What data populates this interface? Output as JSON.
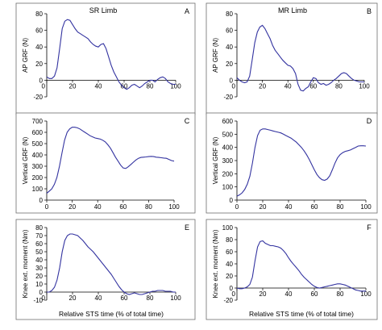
{
  "chart_data": [
    {
      "type": "line",
      "letter": "A",
      "title": "SR Limb",
      "ylabel": "AP GRF (N)",
      "xlabel": "",
      "xlim": [
        0,
        100
      ],
      "ylim": [
        -20,
        80
      ],
      "xticks": [
        0,
        20,
        40,
        60,
        80,
        100
      ],
      "yticks": [
        -20,
        0,
        20,
        40,
        60,
        80
      ],
      "ytick_labels": [
        "-20",
        "0",
        "20",
        "40",
        "60",
        "80"
      ],
      "xtick_labels": [
        "0",
        "20",
        "40",
        "60",
        "80",
        "100"
      ],
      "series": [
        {
          "x": [
            0,
            2,
            4,
            6,
            8,
            10,
            12,
            14,
            16,
            18,
            20,
            22,
            24,
            26,
            28,
            30,
            32,
            34,
            36,
            38,
            40,
            42,
            44,
            46,
            48,
            50,
            52,
            54,
            56,
            58,
            60,
            62,
            64,
            66,
            68,
            70,
            72,
            74,
            76,
            78,
            80,
            82,
            84,
            86,
            88,
            90,
            92,
            94,
            96,
            98,
            100
          ],
          "y": [
            4,
            2,
            2,
            5,
            15,
            38,
            62,
            71,
            73,
            72,
            67,
            62,
            58,
            56,
            54,
            52,
            50,
            46,
            43,
            41,
            40,
            43,
            44,
            38,
            28,
            18,
            10,
            4,
            -2,
            -6,
            -9,
            -11,
            -9,
            -6,
            -5,
            -7,
            -9,
            -7,
            -4,
            -2,
            0,
            0,
            -2,
            1,
            3,
            4,
            2,
            -2,
            -4,
            -5,
            -5
          ]
        }
      ]
    },
    {
      "type": "line",
      "letter": "B",
      "title": "MR Limb",
      "ylabel": "AP GRF (N)",
      "xlabel": "",
      "xlim": [
        0,
        100
      ],
      "ylim": [
        -20,
        80
      ],
      "xticks": [
        0,
        20,
        40,
        60,
        80,
        100
      ],
      "yticks": [
        -20,
        0,
        20,
        40,
        60,
        80
      ],
      "ytick_labels": [
        "-20",
        "0",
        "20",
        "40",
        "60",
        "80"
      ],
      "xtick_labels": [
        "0",
        "20",
        "40",
        "60",
        "80",
        "100"
      ],
      "series": [
        {
          "x": [
            0,
            2,
            4,
            6,
            8,
            10,
            12,
            14,
            16,
            18,
            20,
            22,
            24,
            26,
            28,
            30,
            32,
            34,
            36,
            38,
            40,
            42,
            44,
            46,
            48,
            50,
            52,
            54,
            56,
            58,
            60,
            62,
            64,
            66,
            68,
            70,
            72,
            74,
            76,
            78,
            80,
            82,
            84,
            86,
            88,
            90,
            92,
            94,
            96,
            98,
            100
          ],
          "y": [
            3,
            0,
            -2,
            -3,
            -2,
            5,
            25,
            45,
            58,
            64,
            66,
            62,
            56,
            50,
            42,
            36,
            32,
            28,
            24,
            21,
            18,
            17,
            14,
            8,
            -5,
            -12,
            -13,
            -10,
            -8,
            -2,
            3,
            2,
            -3,
            -5,
            -4,
            -6,
            -5,
            -3,
            0,
            2,
            5,
            8,
            9,
            8,
            5,
            2,
            0,
            -1,
            -2,
            -2,
            -2
          ]
        }
      ]
    },
    {
      "type": "line",
      "letter": "C",
      "title": "",
      "ylabel": "Vertical GRF (N)",
      "xlabel": "",
      "xlim": [
        0,
        100
      ],
      "ylim": [
        0,
        700
      ],
      "xticks": [
        0,
        20,
        40,
        60,
        80,
        100
      ],
      "yticks": [
        0,
        100,
        200,
        300,
        400,
        500,
        600,
        700
      ],
      "ytick_labels": [
        "0",
        "100",
        "200",
        "300",
        "400",
        "500",
        "600",
        "700"
      ],
      "xtick_labels": [
        "0",
        "20",
        "40",
        "60",
        "80",
        "100"
      ],
      "series": [
        {
          "x": [
            0,
            2,
            4,
            6,
            8,
            10,
            12,
            14,
            16,
            18,
            20,
            22,
            24,
            26,
            28,
            30,
            32,
            34,
            36,
            38,
            40,
            42,
            44,
            46,
            48,
            50,
            52,
            54,
            56,
            58,
            60,
            62,
            64,
            66,
            68,
            70,
            72,
            74,
            76,
            78,
            80,
            82,
            84,
            86,
            88,
            90,
            92,
            94,
            96,
            98,
            100
          ],
          "y": [
            60,
            80,
            100,
            140,
            200,
            300,
            420,
            530,
            600,
            630,
            645,
            645,
            640,
            630,
            615,
            600,
            585,
            570,
            560,
            550,
            545,
            540,
            530,
            515,
            490,
            460,
            420,
            380,
            345,
            310,
            285,
            280,
            295,
            315,
            335,
            355,
            370,
            378,
            380,
            382,
            385,
            387,
            385,
            380,
            378,
            375,
            372,
            370,
            360,
            350,
            345
          ]
        }
      ]
    },
    {
      "type": "line",
      "letter": "D",
      "title": "",
      "ylabel": "Vertical GRF (N)",
      "xlabel": "",
      "xlim": [
        0,
        100
      ],
      "ylim": [
        0,
        600
      ],
      "xticks": [
        0,
        20,
        40,
        60,
        80,
        100
      ],
      "yticks": [
        0,
        100,
        200,
        300,
        400,
        500,
        600
      ],
      "ytick_labels": [
        "0",
        "100",
        "200",
        "300",
        "400",
        "500",
        "600"
      ],
      "xtick_labels": [
        "0",
        "20",
        "40",
        "60",
        "80",
        "100"
      ],
      "series": [
        {
          "x": [
            0,
            2,
            4,
            6,
            8,
            10,
            12,
            14,
            16,
            18,
            20,
            22,
            24,
            26,
            28,
            30,
            32,
            34,
            36,
            38,
            40,
            42,
            44,
            46,
            48,
            50,
            52,
            54,
            56,
            58,
            60,
            62,
            64,
            66,
            68,
            70,
            72,
            74,
            76,
            78,
            80,
            82,
            84,
            86,
            88,
            90,
            92,
            94,
            96,
            98,
            100
          ],
          "y": [
            30,
            40,
            55,
            80,
            120,
            180,
            280,
            400,
            490,
            530,
            540,
            540,
            535,
            530,
            525,
            520,
            515,
            510,
            500,
            490,
            480,
            470,
            455,
            440,
            420,
            400,
            375,
            345,
            310,
            270,
            230,
            195,
            170,
            155,
            150,
            160,
            185,
            230,
            280,
            320,
            345,
            360,
            370,
            375,
            380,
            390,
            400,
            410,
            412,
            412,
            410
          ]
        }
      ]
    },
    {
      "type": "line",
      "letter": "E",
      "title": "",
      "ylabel": "Knee ext. moment (Nm)",
      "xlabel": "",
      "xlim": [
        0,
        100
      ],
      "ylim": [
        -10,
        80
      ],
      "xticks": [
        0,
        20,
        40,
        60,
        80,
        100
      ],
      "yticks": [
        -10,
        0,
        10,
        20,
        30,
        40,
        50,
        60,
        70,
        80
      ],
      "ytick_labels": [
        "-10",
        "0",
        "10",
        "20",
        "30",
        "40",
        "50",
        "60",
        "70",
        "80"
      ],
      "xtick_labels": [
        "0",
        "20",
        "40",
        "60",
        "80",
        "100"
      ],
      "series": [
        {
          "x": [
            0,
            2,
            4,
            6,
            8,
            10,
            12,
            14,
            16,
            18,
            20,
            22,
            24,
            26,
            28,
            30,
            32,
            34,
            36,
            38,
            40,
            42,
            44,
            46,
            48,
            50,
            52,
            54,
            56,
            58,
            60,
            62,
            64,
            66,
            68,
            70,
            72,
            74,
            76,
            78,
            80,
            82,
            84,
            86,
            88,
            90,
            92,
            94,
            96,
            98,
            100
          ],
          "y": [
            0,
            0,
            2,
            6,
            15,
            30,
            50,
            64,
            70,
            72,
            72,
            71,
            70,
            67,
            64,
            60,
            56,
            53,
            50,
            46,
            42,
            38,
            34,
            30,
            26,
            22,
            17,
            12,
            7,
            3,
            0,
            -2,
            -3,
            -2,
            -1,
            -2,
            -3,
            -3,
            -2,
            -1,
            0,
            1,
            1,
            2,
            2,
            2,
            1,
            1,
            1,
            0,
            0
          ]
        }
      ]
    },
    {
      "type": "line",
      "letter": "F",
      "title": "",
      "ylabel": "Knee ext. moment (Nm)",
      "xlabel": "",
      "xlim": [
        0,
        100
      ],
      "ylim": [
        -20,
        100
      ],
      "xticks": [
        0,
        20,
        40,
        60,
        80,
        100
      ],
      "yticks": [
        -20,
        0,
        20,
        40,
        60,
        80,
        100
      ],
      "ytick_labels": [
        "-20",
        "0",
        "20",
        "40",
        "60",
        "80",
        "100"
      ],
      "xtick_labels": [
        "0",
        "20",
        "40",
        "60",
        "80",
        "100"
      ],
      "series": [
        {
          "x": [
            0,
            2,
            4,
            6,
            8,
            10,
            12,
            14,
            16,
            18,
            20,
            22,
            24,
            26,
            28,
            30,
            32,
            34,
            36,
            38,
            40,
            42,
            44,
            46,
            48,
            50,
            52,
            54,
            56,
            58,
            60,
            62,
            64,
            66,
            68,
            70,
            72,
            74,
            76,
            78,
            80,
            82,
            84,
            86,
            88,
            90,
            92,
            94,
            96,
            98,
            100
          ],
          "y": [
            0,
            -1,
            -1,
            0,
            2,
            6,
            18,
            45,
            68,
            77,
            78,
            74,
            72,
            70,
            70,
            69,
            68,
            66,
            62,
            57,
            50,
            44,
            39,
            34,
            29,
            23,
            18,
            14,
            10,
            6,
            3,
            1,
            0,
            1,
            2,
            3,
            4,
            5,
            6,
            7,
            7,
            6,
            5,
            3,
            1,
            -1,
            -3,
            -4,
            -5,
            -5,
            -5
          ]
        }
      ]
    }
  ],
  "common_xlabel": "Relative STS time (% of total time)"
}
